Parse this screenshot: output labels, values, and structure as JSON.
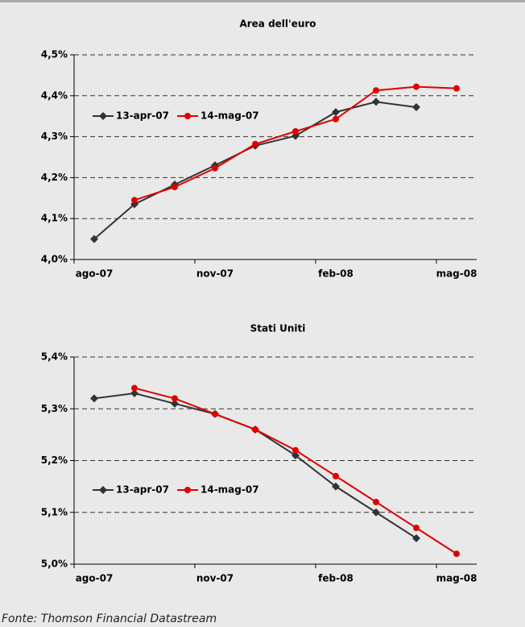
{
  "chart_data": [
    {
      "type": "line",
      "title": "Area dell'euro",
      "categories": [
        "ago-07",
        null,
        null,
        "nov-07",
        null,
        null,
        "feb-08",
        null,
        null,
        "mag-08"
      ],
      "series": [
        {
          "name": "13-apr-07",
          "color": "#333333",
          "marker": "diamond",
          "values": [
            4.05,
            4.135,
            4.183,
            4.23,
            4.278,
            4.302,
            4.36,
            4.385,
            4.372,
            null
          ]
        },
        {
          "name": "14-mag-07",
          "color": "#e00000",
          "marker": "circle",
          "values": [
            null,
            4.145,
            4.177,
            4.223,
            4.282,
            4.313,
            4.343,
            4.413,
            4.422,
            4.418
          ]
        }
      ],
      "ylim": [
        4.0,
        4.5
      ],
      "yticks": [
        {
          "value": 4.0,
          "label": "4,0%"
        },
        {
          "value": 4.1,
          "label": "4,1%"
        },
        {
          "value": 4.2,
          "label": "4,2%"
        },
        {
          "value": 4.3,
          "label": "4,3%"
        },
        {
          "value": 4.4,
          "label": "4,4%"
        },
        {
          "value": 4.5,
          "label": "4,5%"
        }
      ],
      "grid": true
    },
    {
      "type": "line",
      "title": "Stati Uniti",
      "categories": [
        "ago-07",
        null,
        null,
        "nov-07",
        null,
        null,
        "feb-08",
        null,
        null,
        "mag-08"
      ],
      "series": [
        {
          "name": "13-apr-07",
          "color": "#333333",
          "marker": "diamond",
          "values": [
            5.32,
            5.33,
            5.31,
            5.29,
            5.26,
            5.21,
            5.15,
            5.1,
            5.05,
            null
          ]
        },
        {
          "name": "14-mag-07",
          "color": "#e00000",
          "marker": "circle",
          "values": [
            null,
            5.34,
            5.32,
            5.29,
            5.26,
            5.22,
            5.17,
            5.12,
            5.07,
            5.02
          ]
        }
      ],
      "ylim": [
        5.0,
        5.4
      ],
      "yticks": [
        {
          "value": 5.0,
          "label": "5,0%"
        },
        {
          "value": 5.1,
          "label": "5,1%"
        },
        {
          "value": 5.2,
          "label": "5,2%"
        },
        {
          "value": 5.3,
          "label": "5,3%"
        },
        {
          "value": 5.4,
          "label": "5,4%"
        }
      ],
      "grid": true
    }
  ],
  "source": "Fonte: Thomson Financial Datastream"
}
